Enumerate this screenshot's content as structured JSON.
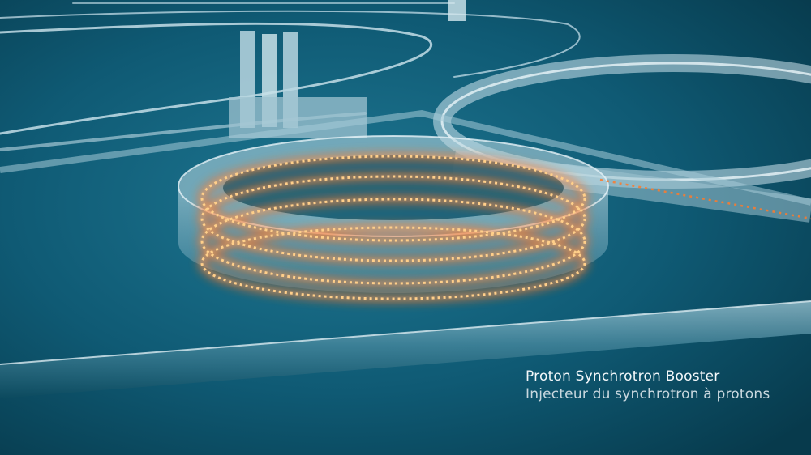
{
  "caption": {
    "title": "Proton Synchrotron Booster",
    "subtitle": "Injecteur du synchrotron à protons"
  },
  "colors": {
    "background": "#0b4f66",
    "background_glow": "#1d6f8a",
    "structure": "#a9cbd8",
    "beam_glow": "#ff7a2a",
    "beam_core": "#ffd9a0"
  },
  "scene": {
    "subject": "booster-ring-illustration",
    "icons": [
      "accelerator-ring",
      "beam-pipe",
      "transfer-line"
    ]
  }
}
